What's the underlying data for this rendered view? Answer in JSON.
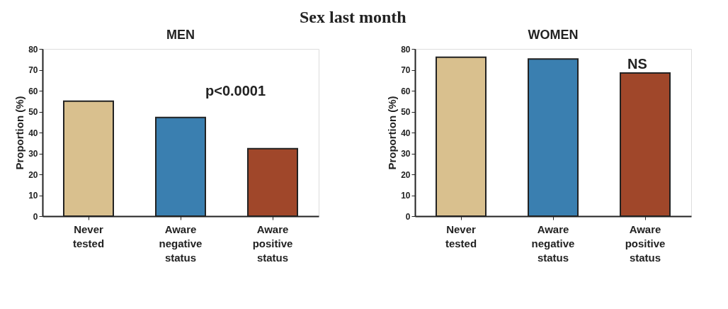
{
  "chart_data": [
    {
      "type": "other",
      "title": "Sex last month"
    },
    {
      "type": "bar",
      "title": "MEN",
      "ylabel": "Proportion (%)",
      "categories": [
        "Never tested",
        "Aware negative status",
        "Aware positive status"
      ],
      "values": [
        55,
        47.2,
        32.3
      ],
      "colors": [
        "#d9c08e",
        "#3a7fb0",
        "#a0472a"
      ],
      "ylim": [
        0,
        80
      ],
      "yticks": [
        0,
        10,
        20,
        30,
        40,
        50,
        60,
        70,
        80
      ],
      "grid": false,
      "annotations": [
        "p<0.0001"
      ]
    },
    {
      "type": "bar",
      "title": "WOMEN",
      "ylabel": "Proportion (%)",
      "categories": [
        "Never tested",
        "Aware negative status",
        "Aware positive status"
      ],
      "values": [
        76,
        75.2,
        68.5
      ],
      "colors": [
        "#d9c08e",
        "#3a7fb0",
        "#a0472a"
      ],
      "ylim": [
        0,
        80
      ],
      "yticks": [
        0,
        10,
        20,
        30,
        40,
        50,
        60,
        70,
        80
      ],
      "grid": false,
      "annotations": [
        "NS"
      ]
    }
  ]
}
